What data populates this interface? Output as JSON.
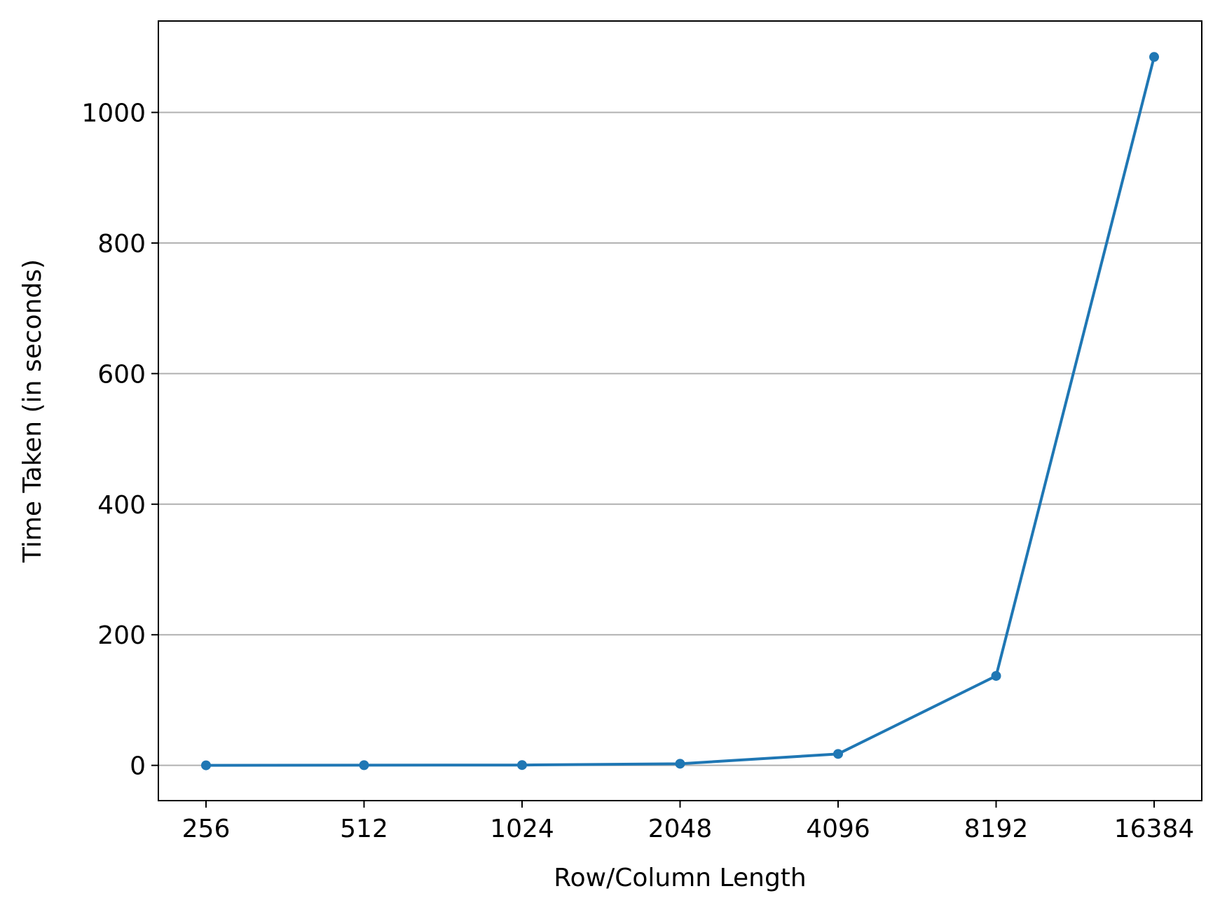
{
  "chart_data": {
    "type": "line",
    "title": "",
    "xlabel": "Row/Column Length",
    "ylabel": "Time Taken (in seconds)",
    "categories": [
      "256",
      "512",
      "1024",
      "2048",
      "4096",
      "8192",
      "16384"
    ],
    "series": [
      {
        "values": [
          0.1,
          0.3,
          0.5,
          2.5,
          17.5,
          137,
          1085
        ]
      }
    ],
    "ylim": [
      -54,
      1140
    ],
    "yticks": [
      0,
      200,
      400,
      600,
      800,
      1000
    ],
    "ytick_labels": [
      "0",
      "200",
      "400",
      "600",
      "800",
      "1000"
    ],
    "grid": "horizontal",
    "legend": "none",
    "colors": {
      "line": "#1f77b4",
      "grid": "#b0b0b0",
      "axes": "#000000"
    }
  }
}
